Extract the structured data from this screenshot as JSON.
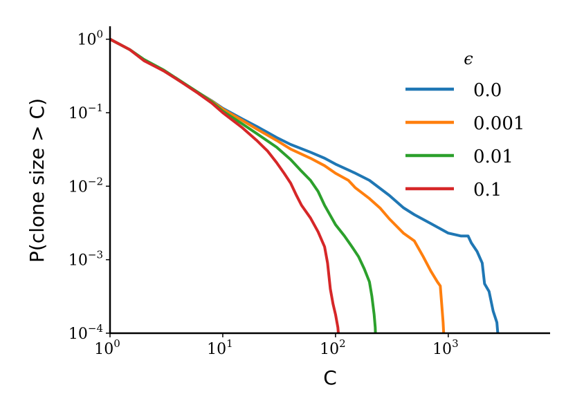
{
  "chart_data": {
    "type": "line",
    "xlabel": "C",
    "ylabel": "P(clone size > C)",
    "xscale": "log",
    "yscale": "log",
    "xlim": [
      1,
      8000
    ],
    "ylim": [
      0.0001,
      1.5
    ],
    "grid": false,
    "legend": {
      "title": "ϵ",
      "placement": "top-right"
    },
    "x_ticks": [
      {
        "base": "10",
        "exp": "0",
        "value": 1
      },
      {
        "base": "10",
        "exp": "1",
        "value": 10
      },
      {
        "base": "10",
        "exp": "2",
        "value": 100
      },
      {
        "base": "10",
        "exp": "3",
        "value": 1000
      }
    ],
    "y_ticks": [
      {
        "base": "10",
        "exp": "0",
        "value": 1
      },
      {
        "base": "10",
        "exp": "−1",
        "value": 0.1
      },
      {
        "base": "10",
        "exp": "−2",
        "value": 0.01
      },
      {
        "base": "10",
        "exp": "−3",
        "value": 0.001
      },
      {
        "base": "10",
        "exp": "−4",
        "value": 0.0001
      }
    ],
    "series": [
      {
        "name": "0.0",
        "color": "#1f77b4",
        "points": [
          [
            1,
            1.0
          ],
          [
            1.5,
            0.72
          ],
          [
            2,
            0.52
          ],
          [
            3,
            0.37
          ],
          [
            4,
            0.28
          ],
          [
            6,
            0.19
          ],
          [
            8,
            0.145
          ],
          [
            10,
            0.115
          ],
          [
            15,
            0.082
          ],
          [
            20,
            0.065
          ],
          [
            30,
            0.046
          ],
          [
            40,
            0.037
          ],
          [
            60,
            0.029
          ],
          [
            80,
            0.024
          ],
          [
            100,
            0.02
          ],
          [
            150,
            0.015
          ],
          [
            200,
            0.012
          ],
          [
            300,
            0.0075
          ],
          [
            400,
            0.0051
          ],
          [
            500,
            0.0041
          ],
          [
            700,
            0.0031
          ],
          [
            1000,
            0.0023
          ],
          [
            1300,
            0.0021
          ],
          [
            1500,
            0.0021
          ],
          [
            1600,
            0.0017
          ],
          [
            1800,
            0.0013
          ],
          [
            2000,
            0.0009
          ],
          [
            2100,
            0.00047
          ],
          [
            2300,
            0.00037
          ],
          [
            2500,
            0.0002
          ],
          [
            2700,
            0.00014
          ],
          [
            2750,
            0.0001
          ]
        ]
      },
      {
        "name": "0.001",
        "color": "#ff7f0e",
        "points": [
          [
            1,
            1.0
          ],
          [
            1.5,
            0.72
          ],
          [
            2,
            0.52
          ],
          [
            3,
            0.37
          ],
          [
            4,
            0.28
          ],
          [
            6,
            0.19
          ],
          [
            8,
            0.143
          ],
          [
            10,
            0.112
          ],
          [
            15,
            0.078
          ],
          [
            20,
            0.06
          ],
          [
            30,
            0.042
          ],
          [
            40,
            0.032
          ],
          [
            60,
            0.024
          ],
          [
            80,
            0.019
          ],
          [
            100,
            0.015
          ],
          [
            130,
            0.012
          ],
          [
            150,
            0.0095
          ],
          [
            200,
            0.0068
          ],
          [
            250,
            0.005
          ],
          [
            300,
            0.0036
          ],
          [
            400,
            0.0023
          ],
          [
            500,
            0.0018
          ],
          [
            600,
            0.0011
          ],
          [
            700,
            0.0007
          ],
          [
            800,
            0.0005
          ],
          [
            850,
            0.00044
          ],
          [
            880,
            0.00022
          ],
          [
            900,
            0.00014
          ],
          [
            910,
            0.0001
          ]
        ]
      },
      {
        "name": "0.01",
        "color": "#2ca02c",
        "points": [
          [
            1,
            1.0
          ],
          [
            1.5,
            0.72
          ],
          [
            2,
            0.53
          ],
          [
            3,
            0.38
          ],
          [
            4,
            0.285
          ],
          [
            6,
            0.19
          ],
          [
            8,
            0.14
          ],
          [
            10,
            0.105
          ],
          [
            15,
            0.07
          ],
          [
            20,
            0.052
          ],
          [
            30,
            0.034
          ],
          [
            40,
            0.023
          ],
          [
            50,
            0.016
          ],
          [
            60,
            0.012
          ],
          [
            70,
            0.0085
          ],
          [
            80,
            0.0055
          ],
          [
            90,
            0.004
          ],
          [
            100,
            0.003
          ],
          [
            120,
            0.0021
          ],
          [
            140,
            0.0015
          ],
          [
            160,
            0.0011
          ],
          [
            180,
            0.00075
          ],
          [
            200,
            0.0005
          ],
          [
            210,
            0.00032
          ],
          [
            220,
            0.00018
          ],
          [
            225,
            0.00012
          ],
          [
            226,
            0.0001
          ]
        ]
      },
      {
        "name": "0.1",
        "color": "#d62728",
        "points": [
          [
            1,
            1.0
          ],
          [
            1.5,
            0.72
          ],
          [
            2,
            0.51
          ],
          [
            3,
            0.37
          ],
          [
            4,
            0.28
          ],
          [
            6,
            0.185
          ],
          [
            8,
            0.135
          ],
          [
            10,
            0.1
          ],
          [
            15,
            0.062
          ],
          [
            20,
            0.042
          ],
          [
            25,
            0.03
          ],
          [
            30,
            0.021
          ],
          [
            35,
            0.015
          ],
          [
            40,
            0.011
          ],
          [
            45,
            0.0075
          ],
          [
            50,
            0.0055
          ],
          [
            60,
            0.0037
          ],
          [
            70,
            0.0024
          ],
          [
            80,
            0.0015
          ],
          [
            85,
            0.0009
          ],
          [
            90,
            0.0004
          ],
          [
            95,
            0.00025
          ],
          [
            100,
            0.00018
          ],
          [
            105,
            0.00012
          ],
          [
            106,
            0.0001
          ]
        ]
      }
    ]
  }
}
